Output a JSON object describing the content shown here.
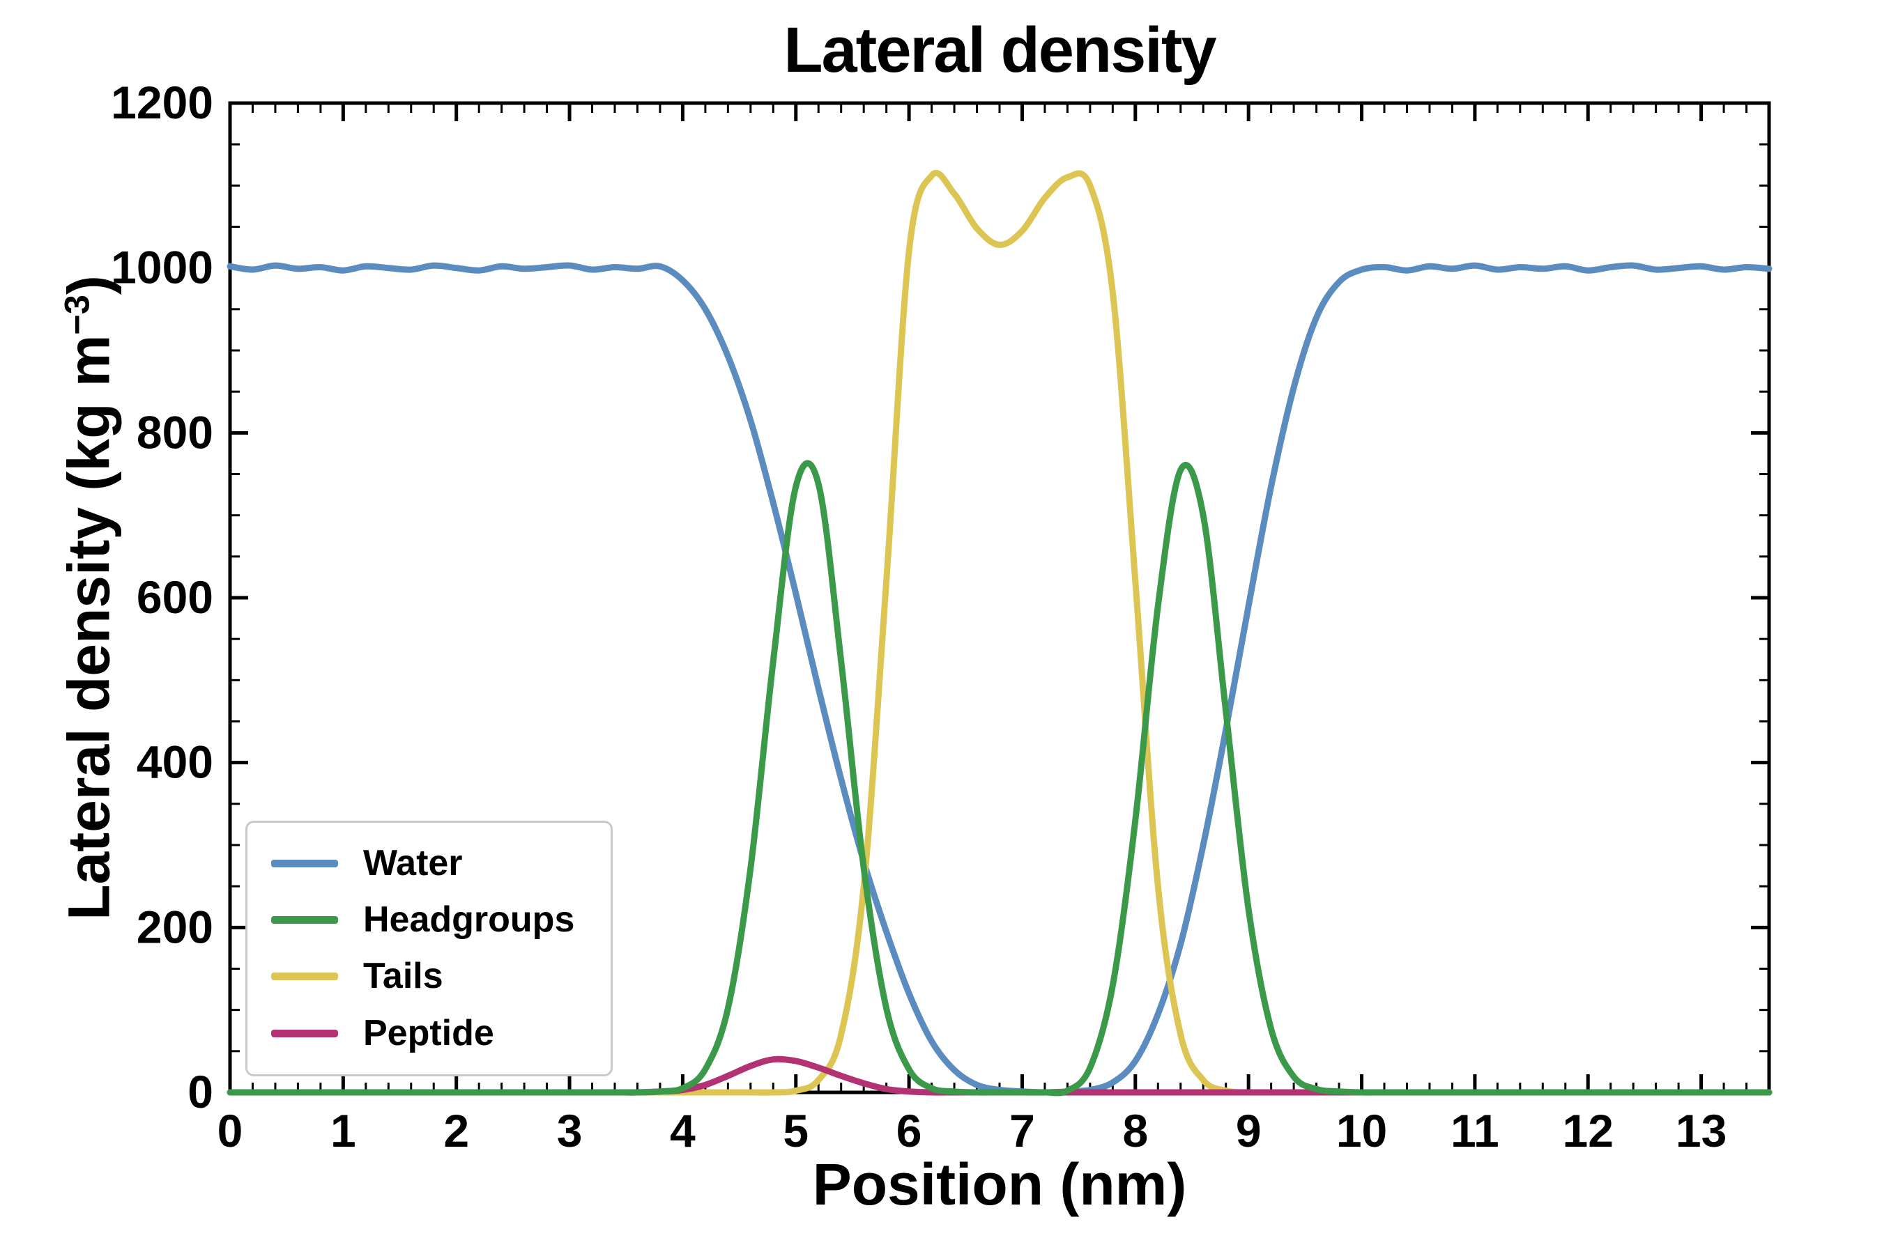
{
  "title": "Lateral density",
  "figure": {
    "background": "#ffffff",
    "axis_color": "#000000"
  },
  "chart_data": {
    "type": "line",
    "title": "Lateral density",
    "xlabel": "Position (nm)",
    "ylabel": "Lateral density (kg m−3)",
    "ylabel_parts": {
      "prefix": "Lateral density (kg m",
      "sup": "−3",
      "suffix": ")"
    },
    "xlim": [
      0,
      13.6
    ],
    "ylim": [
      0,
      1200
    ],
    "x_ticks": [
      0,
      1,
      2,
      3,
      4,
      5,
      6,
      7,
      8,
      9,
      10,
      11,
      12,
      13
    ],
    "y_ticks": [
      0,
      200,
      400,
      600,
      800,
      1000,
      1200
    ],
    "x_minor_step": 0.2,
    "y_minor_step": 50,
    "grid": false,
    "legend_position": "lower-left",
    "draw_order": [
      0,
      2,
      3,
      1
    ],
    "x": [
      0,
      0.2,
      0.4,
      0.6,
      0.8,
      1,
      1.2,
      1.4,
      1.6,
      1.8,
      2,
      2.2,
      2.4,
      2.6,
      2.8,
      3,
      3.2,
      3.4,
      3.6,
      3.8,
      4,
      4.2,
      4.4,
      4.6,
      4.8,
      5,
      5.2,
      5.4,
      5.6,
      5.8,
      6,
      6.2,
      6.4,
      6.6,
      6.8,
      7,
      7.2,
      7.4,
      7.6,
      7.8,
      8,
      8.2,
      8.4,
      8.6,
      8.8,
      9,
      9.2,
      9.4,
      9.6,
      9.8,
      10,
      10.2,
      10.4,
      10.6,
      10.8,
      11,
      11.2,
      11.4,
      11.6,
      11.8,
      12,
      12.2,
      12.4,
      12.6,
      12.8,
      13,
      13.2,
      13.4,
      13.6
    ],
    "series": [
      {
        "name": "Water",
        "color": "#5b8cbf",
        "values": [
          1002,
          998,
          1003,
          999,
          1001,
          997,
          1002,
          1000,
          998,
          1003,
          1000,
          997,
          1002,
          999,
          1001,
          1003,
          998,
          1001,
          999,
          1002,
          985,
          950,
          893,
          815,
          715,
          605,
          490,
          380,
          280,
          195,
          120,
          62,
          27,
          9,
          3,
          1,
          0,
          1,
          3,
          12,
          38,
          95,
          180,
          300,
          440,
          590,
          735,
          855,
          940,
          983,
          998,
          1001,
          997,
          1002,
          999,
          1003,
          998,
          1001,
          999,
          1002,
          997,
          1001,
          1003,
          998,
          1000,
          1002,
          998,
          1001,
          999
        ]
      },
      {
        "name": "Headgroups",
        "color": "#3a9a4a",
        "values": [
          0,
          0,
          0,
          0,
          0,
          0,
          0,
          0,
          0,
          0,
          0,
          0,
          0,
          0,
          0,
          0,
          0,
          0,
          0,
          1,
          5,
          28,
          102,
          272,
          523,
          735,
          738,
          523,
          272,
          102,
          28,
          5,
          1,
          0,
          0,
          0,
          0,
          2,
          30,
          130,
          330,
          590,
          755,
          700,
          462,
          222,
          77,
          19,
          4,
          1,
          0,
          0,
          0,
          0,
          0,
          0,
          0,
          0,
          0,
          0,
          0,
          0,
          0,
          0,
          0,
          0,
          0,
          0,
          0
        ]
      },
      {
        "name": "Tails",
        "color": "#dcc552",
        "values": [
          0,
          0,
          0,
          0,
          0,
          0,
          0,
          0,
          0,
          0,
          0,
          0,
          0,
          0,
          0,
          0,
          0,
          0,
          0,
          0,
          0,
          0,
          0,
          0,
          0,
          2,
          15,
          70,
          250,
          620,
          1020,
          1112,
          1090,
          1048,
          1028,
          1045,
          1085,
          1110,
          1100,
          970,
          620,
          250,
          70,
          15,
          2,
          0,
          0,
          0,
          0,
          0,
          0,
          0,
          0,
          0,
          0,
          0,
          0,
          0,
          0,
          0,
          0,
          0,
          0,
          0,
          0,
          0,
          0,
          0,
          0
        ]
      },
      {
        "name": "Peptide",
        "color": "#b23273",
        "values": [
          0,
          0,
          0,
          0,
          0,
          0,
          0,
          0,
          0,
          0,
          0,
          0,
          0,
          0,
          0,
          0,
          0,
          0,
          0,
          1,
          3,
          9,
          20,
          32,
          40,
          38,
          30,
          20,
          11,
          4,
          1,
          0,
          0,
          0,
          0,
          0,
          0,
          0,
          0,
          0,
          0,
          0,
          0,
          0,
          0,
          0,
          0,
          0,
          0,
          0,
          0,
          0,
          0,
          0,
          0,
          0,
          0,
          0,
          0,
          0,
          0,
          0,
          0,
          0,
          0,
          0,
          0,
          0,
          0
        ]
      }
    ]
  }
}
